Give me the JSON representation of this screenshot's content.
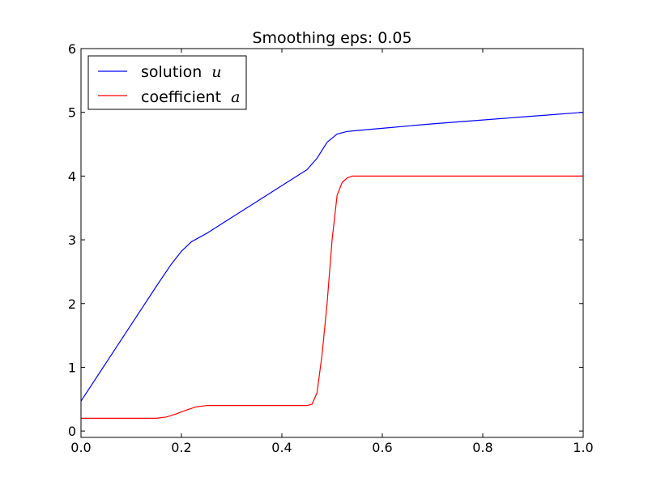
{
  "chart_data": {
    "type": "line",
    "title": "Smoothing eps: 0.05",
    "xlim": [
      0,
      1
    ],
    "ylim": [
      -0.1,
      6
    ],
    "x_ticks": [
      0.0,
      0.2,
      0.4,
      0.6,
      0.8,
      1.0
    ],
    "x_tick_labels": [
      "0.0",
      "0.2",
      "0.4",
      "0.6",
      "0.8",
      "1.0"
    ],
    "y_ticks": [
      0,
      1,
      2,
      3,
      4,
      5,
      6
    ],
    "y_tick_labels": [
      "0",
      "1",
      "2",
      "3",
      "4",
      "5",
      "6"
    ],
    "grid": false,
    "legend_position": "top-left",
    "series": [
      {
        "name": "solution",
        "name_math": "u",
        "color": "#0000ff",
        "x": [
          0.0,
          0.05,
          0.1,
          0.15,
          0.18,
          0.2,
          0.22,
          0.25,
          0.3,
          0.35,
          0.4,
          0.45,
          0.47,
          0.49,
          0.51,
          0.53,
          0.55,
          0.6,
          0.7,
          0.8,
          0.9,
          1.0
        ],
        "y": [
          0.47,
          1.07,
          1.67,
          2.27,
          2.62,
          2.82,
          2.97,
          3.1,
          3.35,
          3.6,
          3.85,
          4.1,
          4.28,
          4.53,
          4.66,
          4.7,
          4.715,
          4.75,
          4.82,
          4.88,
          4.94,
          5.0
        ]
      },
      {
        "name": "coefficient",
        "name_math": "a",
        "color": "#ff0000",
        "x": [
          0.0,
          0.1,
          0.15,
          0.17,
          0.19,
          0.21,
          0.23,
          0.25,
          0.3,
          0.4,
          0.45,
          0.46,
          0.47,
          0.48,
          0.49,
          0.5,
          0.51,
          0.52,
          0.53,
          0.54,
          0.55,
          0.6,
          0.7,
          0.8,
          0.9,
          1.0
        ],
        "y": [
          0.2,
          0.2,
          0.2,
          0.22,
          0.27,
          0.33,
          0.38,
          0.4,
          0.4,
          0.4,
          0.4,
          0.42,
          0.6,
          1.2,
          2.0,
          3.0,
          3.7,
          3.9,
          3.97,
          4.0,
          4.0,
          4.0,
          4.0,
          4.0,
          4.0,
          4.0
        ]
      }
    ]
  }
}
